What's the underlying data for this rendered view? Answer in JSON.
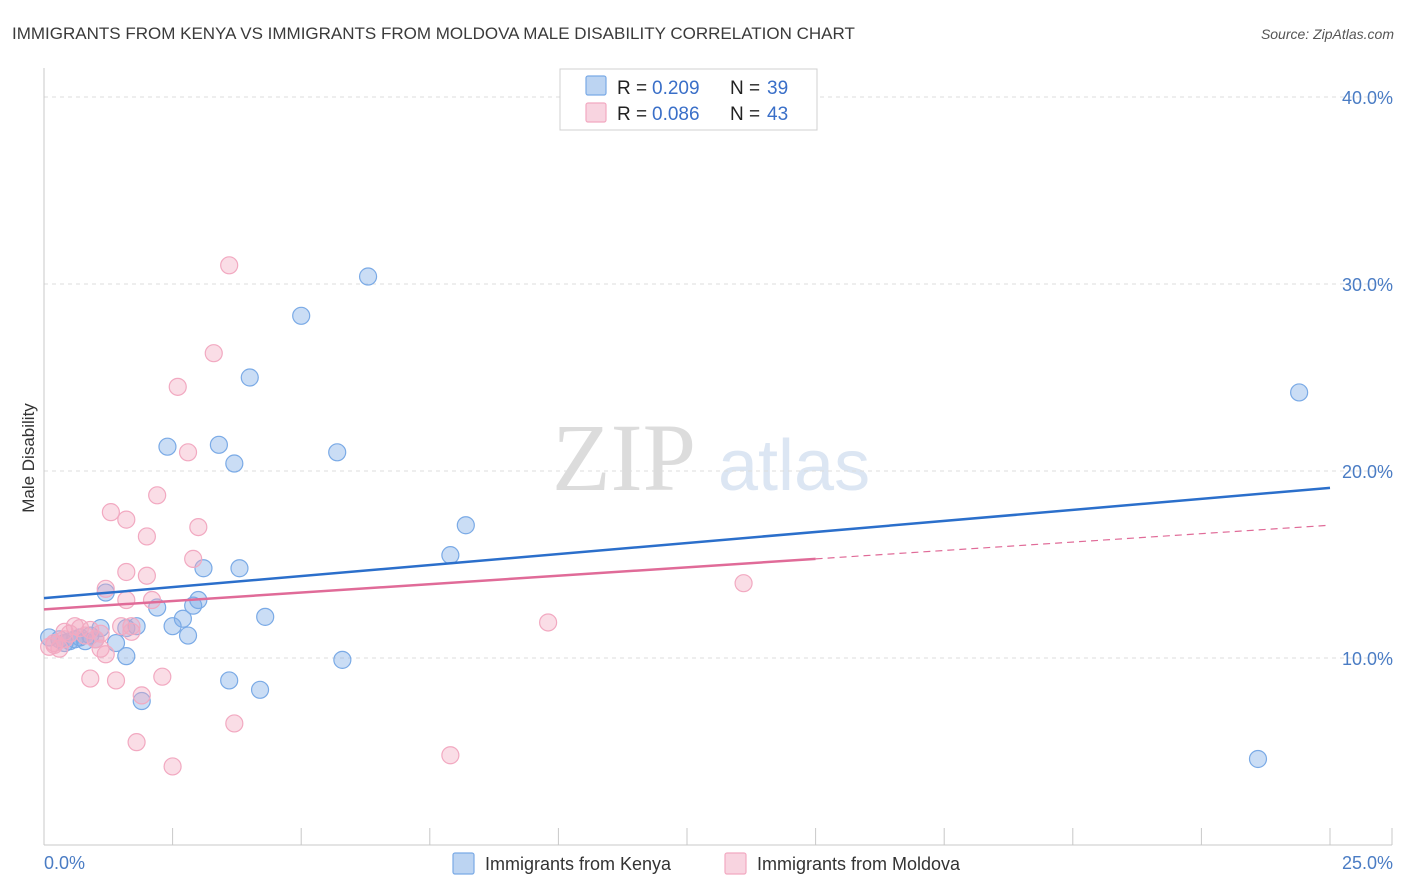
{
  "chart_data": {
    "type": "scatter",
    "title": "IMMIGRANTS FROM KENYA VS IMMIGRANTS FROM MOLDOVA MALE DISABILITY CORRELATION CHART",
    "source": "Source: ZipAtlas.com",
    "ylabel": "Male Disability",
    "xlabel": "",
    "xlim": [
      0,
      25
    ],
    "ylim": [
      0,
      40
    ],
    "x_tick_labels": [
      "0.0%",
      "25.0%"
    ],
    "y_ticks": [
      10,
      20,
      30,
      40
    ],
    "y_tick_labels": [
      "10.0%",
      "20.0%",
      "30.0%",
      "40.0%"
    ],
    "grid": true,
    "watermark": {
      "zip": "ZIP",
      "atlas": "atlas"
    },
    "legend_position": "top-center",
    "series": [
      {
        "name": "Immigrants from Kenya",
        "color": "#7aaae6",
        "line_color": "#2b6fcb",
        "stats": {
          "r_label": "R = ",
          "r_value": "0.209",
          "n_label": "N = ",
          "n_value": "39"
        },
        "trend": {
          "x0": 0,
          "y0": 13.2,
          "x1": 25,
          "y1": 19.1,
          "dashed_from": null
        },
        "points": [
          [
            0.1,
            11.1
          ],
          [
            0.3,
            11.0
          ],
          [
            0.4,
            10.8
          ],
          [
            0.5,
            10.9
          ],
          [
            0.6,
            11.0
          ],
          [
            0.7,
            11.1
          ],
          [
            0.8,
            10.9
          ],
          [
            0.9,
            11.2
          ],
          [
            1.0,
            11.0
          ],
          [
            1.1,
            11.6
          ],
          [
            1.2,
            13.5
          ],
          [
            1.4,
            10.8
          ],
          [
            1.6,
            11.6
          ],
          [
            1.8,
            11.7
          ],
          [
            1.9,
            7.7
          ],
          [
            2.2,
            12.7
          ],
          [
            2.4,
            21.3
          ],
          [
            2.5,
            11.7
          ],
          [
            2.7,
            12.1
          ],
          [
            2.8,
            11.2
          ],
          [
            2.9,
            12.8
          ],
          [
            3.0,
            13.1
          ],
          [
            3.1,
            14.8
          ],
          [
            3.4,
            21.4
          ],
          [
            3.6,
            8.8
          ],
          [
            3.7,
            20.4
          ],
          [
            3.8,
            14.8
          ],
          [
            4.0,
            25.0
          ],
          [
            4.2,
            8.3
          ],
          [
            4.3,
            12.2
          ],
          [
            5.0,
            28.3
          ],
          [
            5.7,
            21.0
          ],
          [
            5.8,
            9.9
          ],
          [
            6.3,
            30.4
          ],
          [
            7.9,
            15.5
          ],
          [
            8.2,
            17.1
          ],
          [
            1.6,
            10.1
          ],
          [
            23.6,
            4.6
          ],
          [
            24.4,
            24.2
          ]
        ]
      },
      {
        "name": "Immigrants from Moldova",
        "color": "#f2a9c1",
        "line_color": "#e06b98",
        "stats": {
          "r_label": "R = ",
          "r_value": "0.086",
          "n_label": "N = ",
          "n_value": "43"
        },
        "trend": {
          "x0": 0,
          "y0": 12.6,
          "x1": 25,
          "y1": 17.1,
          "dashed_from": 15.0
        },
        "points": [
          [
            0.1,
            10.6
          ],
          [
            0.2,
            10.8
          ],
          [
            0.3,
            10.5
          ],
          [
            0.4,
            11.0
          ],
          [
            0.5,
            11.3
          ],
          [
            0.6,
            11.7
          ],
          [
            0.7,
            11.6
          ],
          [
            0.8,
            11.2
          ],
          [
            0.9,
            8.9
          ],
          [
            1.0,
            11.0
          ],
          [
            1.1,
            10.5
          ],
          [
            1.2,
            10.2
          ],
          [
            1.2,
            13.7
          ],
          [
            1.3,
            17.8
          ],
          [
            1.4,
            8.8
          ],
          [
            1.5,
            11.7
          ],
          [
            1.6,
            17.4
          ],
          [
            1.6,
            13.1
          ],
          [
            1.6,
            14.6
          ],
          [
            1.7,
            11.4
          ],
          [
            1.8,
            5.5
          ],
          [
            1.9,
            8.0
          ],
          [
            2.0,
            14.4
          ],
          [
            2.0,
            16.5
          ],
          [
            2.1,
            13.1
          ],
          [
            2.2,
            18.7
          ],
          [
            2.3,
            9.0
          ],
          [
            2.5,
            4.2
          ],
          [
            2.6,
            24.5
          ],
          [
            2.8,
            21.0
          ],
          [
            2.9,
            15.3
          ],
          [
            3.0,
            17.0
          ],
          [
            3.3,
            26.3
          ],
          [
            3.6,
            31.0
          ],
          [
            3.7,
            6.5
          ],
          [
            7.9,
            4.8
          ],
          [
            9.8,
            11.9
          ],
          [
            13.6,
            14.0
          ],
          [
            0.2,
            10.7
          ],
          [
            0.4,
            11.4
          ],
          [
            0.9,
            11.5
          ],
          [
            1.1,
            11.3
          ],
          [
            1.7,
            11.7
          ]
        ]
      }
    ]
  }
}
